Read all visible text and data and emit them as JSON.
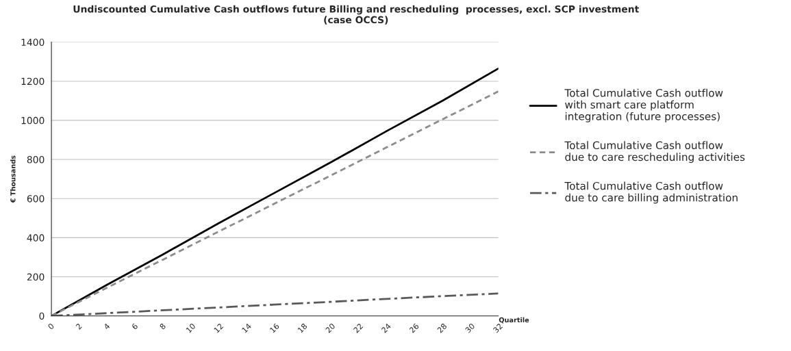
{
  "chart_data": {
    "type": "line",
    "title": "Undiscounted Cumulative Cash outflows future Billing and rescheduling  processes, excl. SCP investment\n(case OCCS)",
    "xlabel": "Quartile",
    "ylabel": "€ Thousands",
    "x": [
      0,
      4,
      8,
      12,
      16,
      20,
      24,
      28,
      32
    ],
    "series": [
      {
        "name": "Total Cumulative Cash outflow\nwith smart care platform\nintegration (future processes)",
        "color": "#000000",
        "line_style": "solid",
        "values": [
          0,
          160,
          315,
          475,
          630,
          785,
          945,
          1100,
          1265
        ]
      },
      {
        "name": "Total Cumulative Cash outflow\ndue to care rescheduling activities",
        "color": "#8c8c8c",
        "line_style": "dashed",
        "values": [
          0,
          145,
          288,
          432,
          575,
          718,
          862,
          1005,
          1148
        ]
      },
      {
        "name": "Total Cumulative Cash outflow\ndue to care billing administration",
        "color": "#595959",
        "line_style": "dashdot",
        "values": [
          0,
          14,
          29,
          43,
          58,
          72,
          87,
          101,
          115
        ]
      }
    ],
    "xlim": [
      0,
      32
    ],
    "xticks": [
      0,
      2,
      4,
      6,
      8,
      10,
      12,
      14,
      16,
      18,
      20,
      22,
      24,
      26,
      28,
      30,
      32
    ],
    "ylim": [
      0,
      1400
    ],
    "yticks": [
      0,
      200,
      400,
      600,
      800,
      1000,
      1200,
      1400
    ],
    "grid": "y",
    "legend": "right"
  }
}
